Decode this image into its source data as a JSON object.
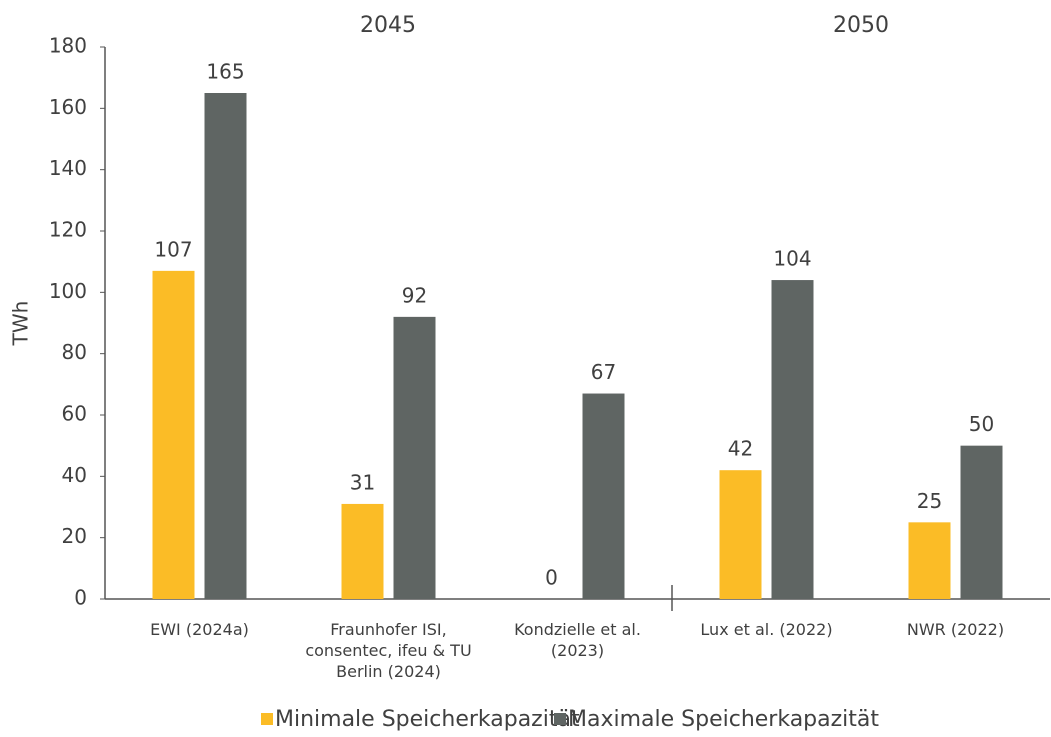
{
  "chart_data": {
    "type": "bar",
    "group_labels": [
      "2045",
      "2050"
    ],
    "y_label": "TWh",
    "categories": [
      "EWI (2024a)",
      "Fraunhofer ISI, consentec, ifeu & TU Berlin (2024)",
      "Kondzielle et al. (2023)",
      "Lux et al. (2022)",
      "NWR (2022)"
    ],
    "series": [
      {
        "name": "Minimale Speicherkapazität",
        "color": "#fbbc26",
        "values": [
          107,
          31,
          0,
          42,
          25
        ]
      },
      {
        "name": "Maximale Speicherkapazität",
        "color": "#5f6563",
        "values": [
          165,
          92,
          67,
          104,
          50
        ]
      }
    ],
    "ylim": [
      0,
      180
    ],
    "yticks": [
      0,
      20,
      40,
      60,
      80,
      100,
      120,
      140,
      160,
      180
    ],
    "grid": false
  }
}
